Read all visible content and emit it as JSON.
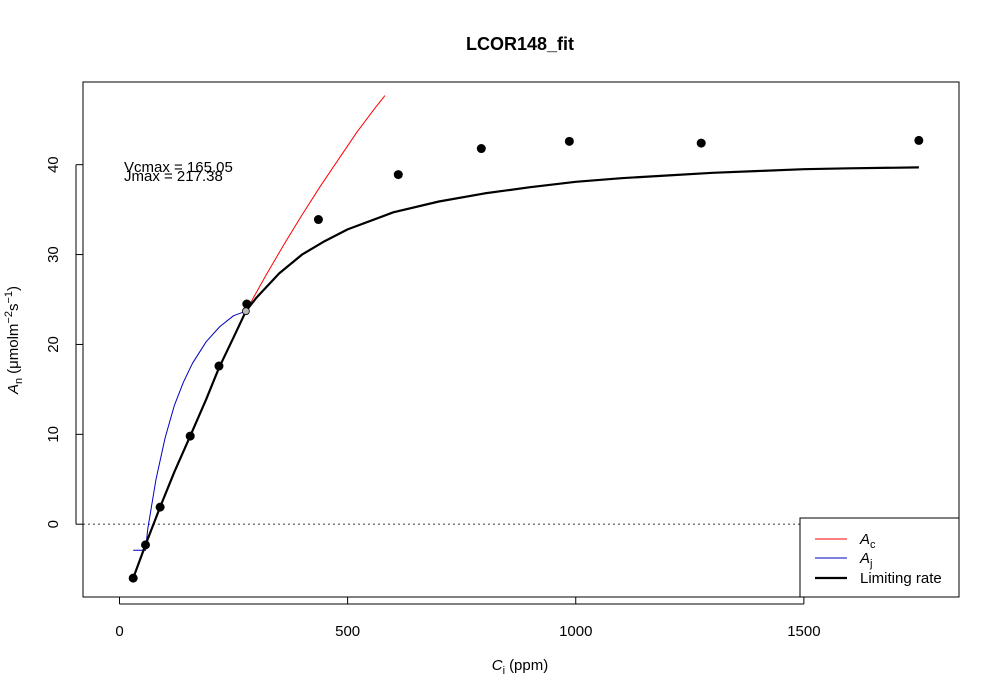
{
  "chart_data": {
    "type": "scatter",
    "title": "LCOR148_fit",
    "xlabel": {
      "main": "C",
      "sub": "i",
      "unit": "(ppm)"
    },
    "ylabel": {
      "main": "A",
      "sub": "n",
      "unit_open": "(μmolm",
      "unit_exp1": "−2",
      "unit_mid": "s",
      "unit_exp2": "−1",
      "unit_close": ")"
    },
    "xlim": [
      -80,
      1840
    ],
    "ylim": [
      -8.1,
      49.2
    ],
    "x_ticks": [
      0,
      500,
      1000,
      1500
    ],
    "y_ticks": [
      0,
      10,
      20,
      30,
      40
    ],
    "grid": false,
    "annotations": [
      "Vcmax = 165.05",
      "Jmax = 217.38"
    ],
    "reference_line": {
      "y": 0,
      "style": "dotted"
    },
    "points": {
      "x": [
        30,
        57,
        89,
        155,
        218,
        279,
        436,
        611,
        793,
        986,
        1275,
        1752
      ],
      "y": [
        -6.0,
        -2.3,
        1.9,
        9.8,
        17.6,
        24.5,
        33.9,
        38.9,
        41.8,
        42.6,
        42.4,
        42.7
      ]
    },
    "transition_point": {
      "x": 277,
      "y": 23.7
    },
    "series": [
      {
        "name": "A",
        "sub": "c",
        "color": "#ff0000",
        "x": [
          277,
          320,
          360,
          400,
          440,
          480,
          520,
          560,
          582
        ],
        "y": [
          23.7,
          27.6,
          31.1,
          34.4,
          37.6,
          40.6,
          43.6,
          46.3,
          47.7
        ]
      },
      {
        "name": "A",
        "sub": "j",
        "color": "#0000c0",
        "x": [
          30,
          57,
          62,
          80,
          100,
          120,
          140,
          160,
          190,
          220,
          250,
          277
        ],
        "y": [
          -2.9,
          -2.9,
          -0.5,
          5.0,
          9.6,
          13.2,
          15.8,
          17.9,
          20.3,
          22.0,
          23.2,
          23.7
        ]
      },
      {
        "name": "Limiting rate",
        "color": "#000000",
        "x": [
          30,
          57,
          89,
          120,
          155,
          190,
          218,
          250,
          277,
          300,
          350,
          400,
          450,
          500,
          600,
          700,
          800,
          900,
          1000,
          1100,
          1200,
          1300,
          1400,
          1500,
          1600,
          1752
        ],
        "y": [
          -6.0,
          -2.3,
          1.9,
          5.8,
          9.8,
          13.9,
          17.4,
          20.8,
          23.7,
          25.2,
          27.9,
          30.0,
          31.5,
          32.8,
          34.7,
          35.9,
          36.8,
          37.5,
          38.1,
          38.5,
          38.8,
          39.1,
          39.3,
          39.5,
          39.6,
          39.7
        ]
      }
    ],
    "legend": {
      "placement": "bottom-right",
      "entries": [
        {
          "main": "A",
          "sub": "c",
          "color": "#ff0000"
        },
        {
          "main": "A",
          "sub": "j",
          "color": "#0000c0"
        },
        {
          "main": "Limiting rate",
          "sub": "",
          "color": "#000000"
        }
      ]
    }
  }
}
